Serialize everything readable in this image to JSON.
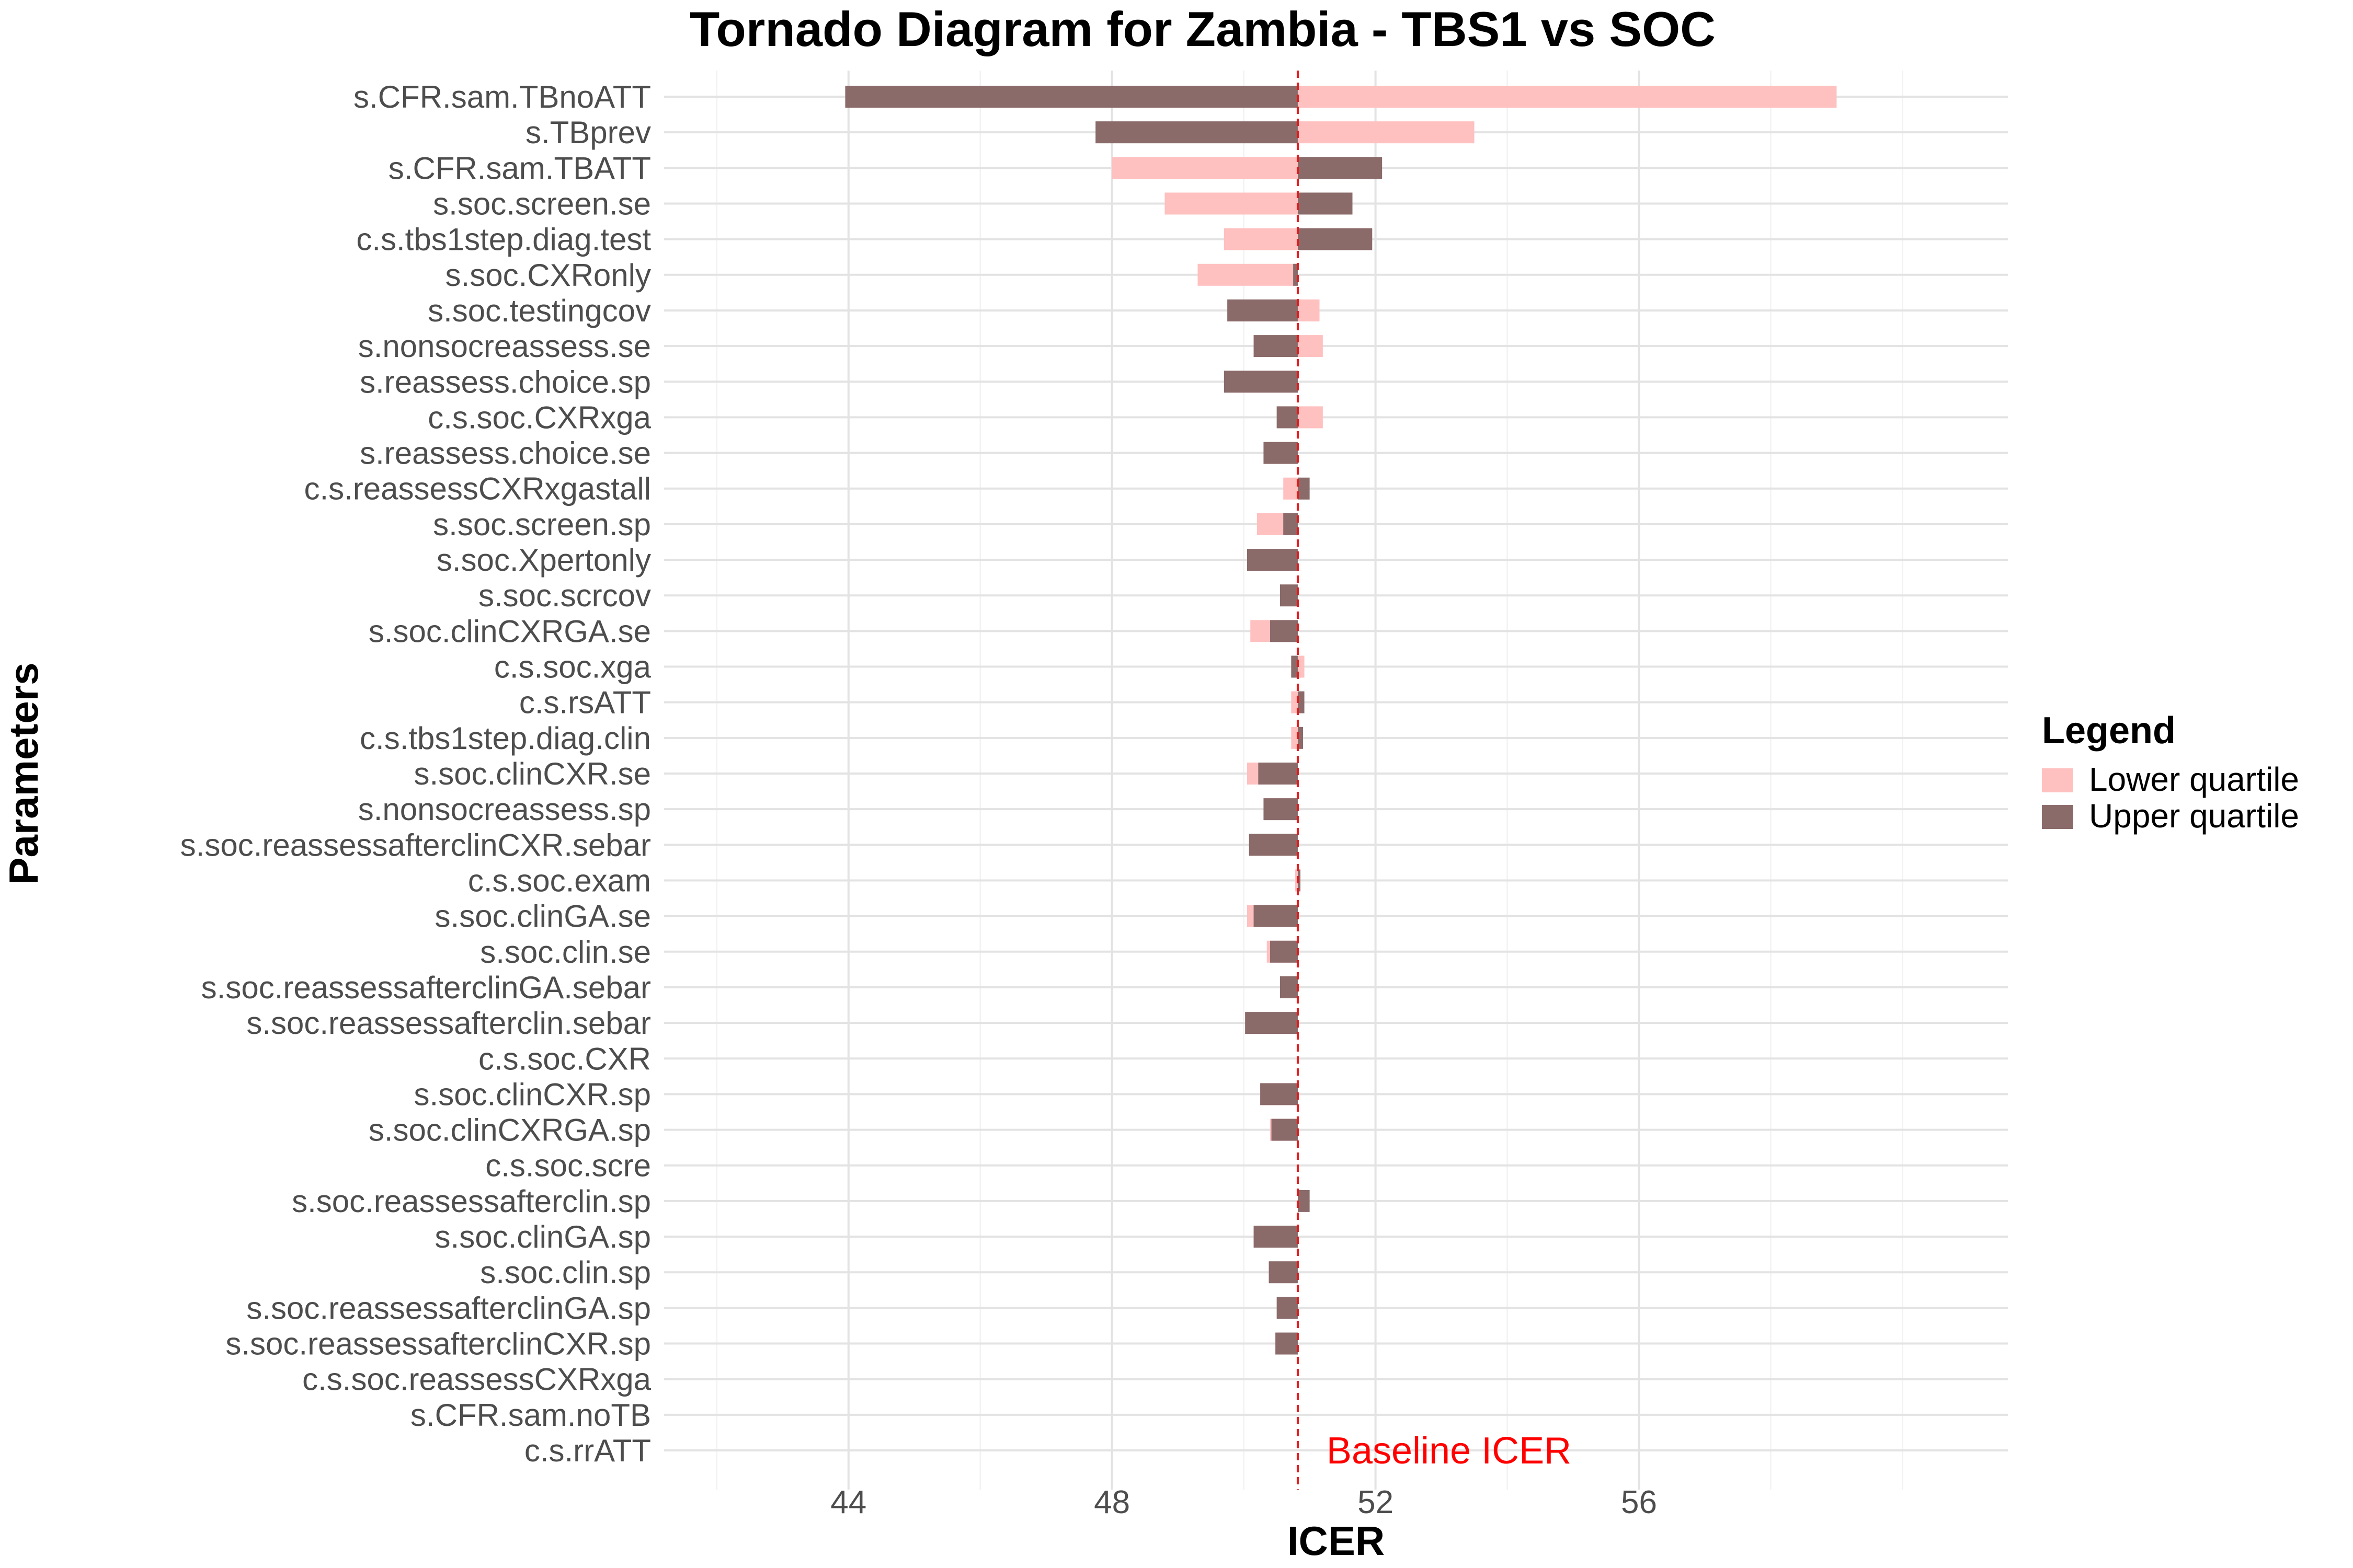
{
  "chart_data": {
    "type": "bar",
    "orientation": "horizontal",
    "title": "Tornado Diagram for Zambia - TBS1 vs SOC",
    "xlabel": "ICER",
    "ylabel": "Parameters",
    "xlim": [
      41.2,
      61.6
    ],
    "x_ticks": [
      44,
      48,
      52,
      56
    ],
    "baseline": 50.82,
    "baseline_label": "Baseline ICER",
    "grid": true,
    "legend_position": "right",
    "legend": {
      "title": "Legend",
      "items": [
        {
          "label": "Lower quartile",
          "color": "#ffc0c0"
        },
        {
          "label": "Upper quartile",
          "color": "#8b6a6a"
        }
      ]
    },
    "categories": [
      "s.CFR.sam.TBnoATT",
      "s.TBprev",
      "s.CFR.sam.TBATT",
      "s.soc.screen.se",
      "c.s.tbs1step.diag.test",
      "s.soc.CXRonly",
      "s.soc.testingcov",
      "s.nonsocreassess.se",
      "s.reassess.choice.sp",
      "c.s.soc.CXRxga",
      "s.reassess.choice.se",
      "c.s.reassessCXRxgastall",
      "s.soc.screen.sp",
      "s.soc.Xpertonly",
      "s.soc.scrcov",
      "s.soc.clinCXRGA.se",
      "c.s.soc.xga",
      "c.s.rsATT",
      "c.s.tbs1step.diag.clin",
      "s.soc.clinCXR.se",
      "s.nonsocreassess.sp",
      "s.soc.reassessafterclinCXR.sebar",
      "c.s.soc.exam",
      "s.soc.clinGA.se",
      "s.soc.clin.se",
      "s.soc.reassessafterclinGA.sebar",
      "s.soc.reassessafterclin.sebar",
      "c.s.soc.CXR",
      "s.soc.clinCXR.sp",
      "s.soc.clinCXRGA.sp",
      "c.s.soc.scre",
      "s.soc.reassessafterclin.sp",
      "s.soc.clinGA.sp",
      "s.soc.clin.sp",
      "s.soc.reassessafterclinGA.sp",
      "s.soc.reassessafterclinCXR.sp",
      "c.s.soc.reassessCXRxga",
      "s.CFR.sam.noTB",
      "c.s.rrATT"
    ],
    "series": [
      {
        "name": "Lower quartile",
        "color": "#ffc0c0",
        "values": [
          59.0,
          53.5,
          48.0,
          48.8,
          49.7,
          49.3,
          51.15,
          51.2,
          50.82,
          51.2,
          50.82,
          50.6,
          50.2,
          50.82,
          50.82,
          50.1,
          50.92,
          50.72,
          50.72,
          50.05,
          50.82,
          50.82,
          50.78,
          50.05,
          50.35,
          50.82,
          50.82,
          50.82,
          50.25,
          50.4,
          50.82,
          50.82,
          50.82,
          50.82,
          50.82,
          50.82,
          50.82,
          50.82,
          50.82
        ]
      },
      {
        "name": "Upper quartile",
        "color": "#8b6a6a",
        "values": [
          43.95,
          47.75,
          52.1,
          51.65,
          51.95,
          50.75,
          49.75,
          50.15,
          49.7,
          50.5,
          50.3,
          51.0,
          50.6,
          50.05,
          50.55,
          50.4,
          50.72,
          50.92,
          50.9,
          50.22,
          50.3,
          50.08,
          50.86,
          50.15,
          50.4,
          50.55,
          50.02,
          50.82,
          50.25,
          50.42,
          50.82,
          51.0,
          50.15,
          50.38,
          50.5,
          50.48,
          50.82,
          50.82,
          50.82
        ]
      }
    ]
  }
}
